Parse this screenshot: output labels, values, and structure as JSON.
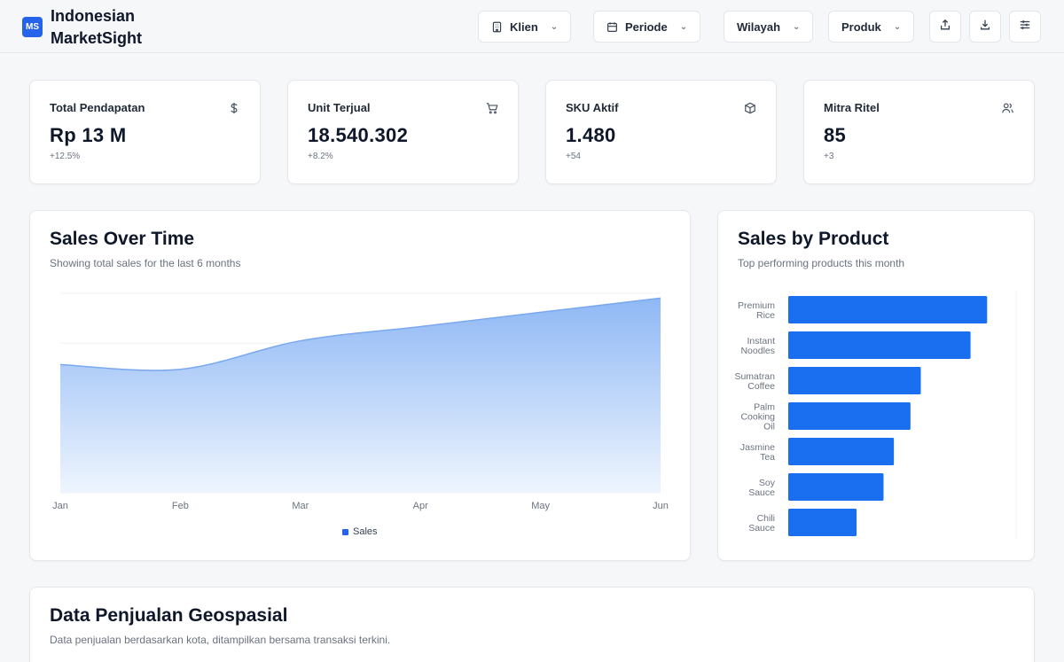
{
  "app": {
    "logo_text": "MS",
    "title": "Indonesian MarketSight"
  },
  "header": {
    "filters": [
      {
        "label": "Klien",
        "icon": "building-icon"
      },
      {
        "label": "Periode",
        "icon": "calendar-icon"
      },
      {
        "label": "Wilayah",
        "icon": ""
      },
      {
        "label": "Produk",
        "icon": ""
      }
    ],
    "actions": [
      "share-icon",
      "download-icon",
      "sliders-icon"
    ]
  },
  "kpis": [
    {
      "label": "Total Pendapatan",
      "value": "Rp 13 M",
      "change": "+12.5%",
      "icon": "dollar-icon"
    },
    {
      "label": "Unit Terjual",
      "value": "18.540.302",
      "change": "+8.2%",
      "icon": "cart-icon"
    },
    {
      "label": "SKU Aktif",
      "value": "1.480",
      "change": "+54",
      "icon": "package-icon"
    },
    {
      "label": "Mitra Ritel",
      "value": "85",
      "change": "+3",
      "icon": "users-icon"
    }
  ],
  "sales_over_time": {
    "title": "Sales Over Time",
    "subtitle": "Showing total sales for the last 6 months",
    "legend": "Sales"
  },
  "sales_by_product": {
    "title": "Sales by Product",
    "subtitle": "Top performing products this month"
  },
  "geo": {
    "title": "Data Penjualan Geospasial",
    "subtitle": "Data penjualan berdasarkan kota, ditampilkan bersama transaksi terkini."
  },
  "colors": {
    "accent": "#2563eb",
    "bar": "#1a6ef0",
    "area_top": "#8fb8f5",
    "area_bottom": "#eef5fe"
  },
  "chart_data": [
    {
      "type": "area",
      "categories": [
        "Jan",
        "Feb",
        "Mar",
        "Apr",
        "May",
        "Jun"
      ],
      "series": [
        {
          "name": "Sales",
          "values": [
            2.7,
            2.6,
            3.2,
            3.5,
            3.8,
            4.1
          ]
        }
      ],
      "ylim": [
        0,
        4.2
      ],
      "grid": true,
      "legend": "bottom"
    },
    {
      "type": "bar",
      "orientation": "horizontal",
      "categories": [
        [
          "Premium",
          "Rice"
        ],
        [
          "Instant",
          "Noodles"
        ],
        [
          "Sumatran",
          "Coffee"
        ],
        [
          "Palm",
          "Cooking",
          "Oil"
        ],
        [
          "Jasmine",
          "Tea"
        ],
        [
          "Soy",
          "Sauce"
        ],
        [
          "Chili",
          "Sauce"
        ]
      ],
      "values": [
        96,
        88,
        64,
        59,
        51,
        46,
        33
      ],
      "xlim": [
        0,
        110
      ]
    }
  ]
}
